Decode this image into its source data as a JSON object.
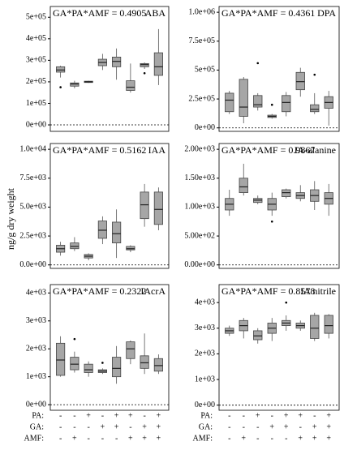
{
  "y_label": "ng/g dry weight",
  "factors": [
    {
      "name": "PA:",
      "levels": [
        "-",
        "-",
        "+",
        "-",
        "+",
        "+",
        "-",
        "+"
      ]
    },
    {
      "name": "GA:",
      "levels": [
        "-",
        "-",
        "-",
        "+",
        "+",
        "-",
        "+",
        "+"
      ]
    },
    {
      "name": "AMF:",
      "levels": [
        "-",
        "+",
        "-",
        "-",
        "-",
        "+",
        "+",
        "+"
      ]
    }
  ],
  "chart_data": [
    {
      "type": "box",
      "title": "ABA",
      "annotation": "GA*PA*AMF = 0.4905",
      "ylim": [
        -30000,
        550000
      ],
      "reference_line": 0,
      "color": "#a6a6a6",
      "yticks": [
        {
          "value": 0,
          "label": "0e+00"
        },
        {
          "value": 100000,
          "label": "1e+05"
        },
        {
          "value": 200000,
          "label": "2e+05"
        },
        {
          "value": 300000,
          "label": "3e+05"
        },
        {
          "value": 400000,
          "label": "4e+05"
        },
        {
          "value": 500000,
          "label": "5e+05"
        }
      ],
      "boxes": [
        {
          "whislo": 220000,
          "q1": 245000,
          "med": 255000,
          "q3": 270000,
          "whishi": 275000,
          "fliers": [
            175000
          ]
        },
        {
          "whislo": 170000,
          "q1": 180000,
          "med": 190000,
          "q3": 195000,
          "whishi": 205000,
          "fliers": []
        },
        {
          "whislo": 195000,
          "q1": 197000,
          "med": 200000,
          "q3": 203000,
          "whishi": 205000,
          "fliers": []
        },
        {
          "whislo": 255000,
          "q1": 275000,
          "med": 290000,
          "q3": 305000,
          "whishi": 330000,
          "fliers": []
        },
        {
          "whislo": 210000,
          "q1": 270000,
          "med": 295000,
          "q3": 315000,
          "whishi": 355000,
          "fliers": []
        },
        {
          "whislo": 150000,
          "q1": 160000,
          "med": 175000,
          "q3": 205000,
          "whishi": 285000,
          "fliers": []
        },
        {
          "whislo": 260000,
          "q1": 270000,
          "med": 280000,
          "q3": 285000,
          "whishi": 290000,
          "fliers": [
            240000
          ]
        },
        {
          "whislo": 185000,
          "q1": 230000,
          "med": 270000,
          "q3": 335000,
          "whishi": 445000,
          "fliers": []
        }
      ]
    },
    {
      "type": "box",
      "title": "DPA",
      "annotation": "GA*PA*AMF = 0.4361",
      "ylim": [
        -30000,
        1050000
      ],
      "reference_line": 0,
      "color": "#a6a6a6",
      "yticks": [
        {
          "value": 0,
          "label": "0e+00"
        },
        {
          "value": 250000,
          "label": "2.5e+05"
        },
        {
          "value": 500000,
          "label": "5e+05"
        },
        {
          "value": 750000,
          "label": "7.5e+05"
        },
        {
          "value": 1000000,
          "label": "1.0e+06"
        }
      ],
      "boxes": [
        {
          "whislo": 120000,
          "q1": 140000,
          "med": 240000,
          "q3": 300000,
          "whishi": 320000,
          "fliers": []
        },
        {
          "whislo": 40000,
          "q1": 100000,
          "med": 180000,
          "q3": 420000,
          "whishi": 440000,
          "fliers": []
        },
        {
          "whislo": 150000,
          "q1": 180000,
          "med": 200000,
          "q3": 280000,
          "whishi": 300000,
          "fliers": [
            560000
          ]
        },
        {
          "whislo": 80000,
          "q1": 90000,
          "med": 100000,
          "q3": 110000,
          "whishi": 120000,
          "fliers": [
            200000
          ]
        },
        {
          "whislo": 100000,
          "q1": 140000,
          "med": 220000,
          "q3": 280000,
          "whishi": 310000,
          "fliers": []
        },
        {
          "whislo": 270000,
          "q1": 330000,
          "med": 400000,
          "q3": 480000,
          "whishi": 520000,
          "fliers": []
        },
        {
          "whislo": 120000,
          "q1": 140000,
          "med": 160000,
          "q3": 200000,
          "whishi": 300000,
          "fliers": [
            460000
          ]
        },
        {
          "whislo": 20000,
          "q1": 170000,
          "med": 220000,
          "q3": 270000,
          "whishi": 320000,
          "fliers": []
        }
      ]
    },
    {
      "type": "box",
      "title": "IAA",
      "annotation": "GA*PA*AMF = 0.5162",
      "ylim": [
        -300,
        10500
      ],
      "reference_line": 0,
      "color": "#a6a6a6",
      "yticks": [
        {
          "value": 0,
          "label": "0.0e+00"
        },
        {
          "value": 2500,
          "label": "2.5e+03"
        },
        {
          "value": 5000,
          "label": "5.0e+03"
        },
        {
          "value": 7500,
          "label": "7.5e+03"
        },
        {
          "value": 10000,
          "label": "1.0e+04"
        }
      ],
      "boxes": [
        {
          "whislo": 800,
          "q1": 1100,
          "med": 1400,
          "q3": 1700,
          "whishi": 2000,
          "fliers": []
        },
        {
          "whislo": 1200,
          "q1": 1400,
          "med": 1600,
          "q3": 1900,
          "whishi": 2400,
          "fliers": []
        },
        {
          "whislo": 400,
          "q1": 600,
          "med": 750,
          "q3": 900,
          "whishi": 1000,
          "fliers": []
        },
        {
          "whislo": 1800,
          "q1": 2300,
          "med": 3000,
          "q3": 3800,
          "whishi": 4200,
          "fliers": []
        },
        {
          "whislo": 600,
          "q1": 1900,
          "med": 2700,
          "q3": 3700,
          "whishi": 4800,
          "fliers": []
        },
        {
          "whislo": 1100,
          "q1": 1300,
          "med": 1400,
          "q3": 1600,
          "whishi": 1700,
          "fliers": []
        },
        {
          "whislo": 3300,
          "q1": 4000,
          "med": 5200,
          "q3": 6300,
          "whishi": 7000,
          "fliers": []
        },
        {
          "whislo": 3000,
          "q1": 3500,
          "med": 4800,
          "q3": 6300,
          "whishi": 6700,
          "fliers": []
        }
      ]
    },
    {
      "type": "box",
      "title": "IA-alanine",
      "annotation": "GA*PA*AMF = 0.9867",
      "ylim": [
        -60,
        2100
      ],
      "reference_line": 0,
      "color": "#a6a6a6",
      "yticks": [
        {
          "value": 0,
          "label": "0.00e+00"
        },
        {
          "value": 500,
          "label": "5.00e+02"
        },
        {
          "value": 1000,
          "label": "1.00e+03"
        },
        {
          "value": 1500,
          "label": "1.50e+03"
        },
        {
          "value": 2000,
          "label": "2.00e+03"
        }
      ],
      "boxes": [
        {
          "whislo": 850,
          "q1": 950,
          "med": 1050,
          "q3": 1150,
          "whishi": 1300,
          "fliers": []
        },
        {
          "whislo": 1200,
          "q1": 1250,
          "med": 1350,
          "q3": 1500,
          "whishi": 1750,
          "fliers": []
        },
        {
          "whislo": 1050,
          "q1": 1080,
          "med": 1120,
          "q3": 1150,
          "whishi": 1200,
          "fliers": []
        },
        {
          "whislo": 850,
          "q1": 950,
          "med": 1050,
          "q3": 1150,
          "whishi": 1250,
          "fliers": [
            750
          ]
        },
        {
          "whislo": 1150,
          "q1": 1180,
          "med": 1250,
          "q3": 1300,
          "whishi": 1320,
          "fliers": []
        },
        {
          "whislo": 1100,
          "q1": 1150,
          "med": 1200,
          "q3": 1250,
          "whishi": 1380,
          "fliers": []
        },
        {
          "whislo": 950,
          "q1": 1100,
          "med": 1200,
          "q3": 1300,
          "whishi": 1450,
          "fliers": []
        },
        {
          "whislo": 850,
          "q1": 1050,
          "med": 1150,
          "q3": 1250,
          "whishi": 1400,
          "fliers": []
        }
      ]
    },
    {
      "type": "box",
      "title": "IAcrA",
      "annotation": "GA*PA*AMF = 0.2322",
      "ylim": [
        -200,
        4300
      ],
      "reference_line": 0,
      "color": "#a6a6a6",
      "yticks": [
        {
          "value": 0,
          "label": "0e+00"
        },
        {
          "value": 1000,
          "label": "1e+03"
        },
        {
          "value": 2000,
          "label": "2e+03"
        },
        {
          "value": 3000,
          "label": "3e+03"
        },
        {
          "value": 4000,
          "label": "4e+03"
        }
      ],
      "boxes": [
        {
          "whislo": 1000,
          "q1": 1050,
          "med": 1600,
          "q3": 2200,
          "whishi": 2450,
          "fliers": []
        },
        {
          "whislo": 1150,
          "q1": 1250,
          "med": 1450,
          "q3": 1700,
          "whishi": 1900,
          "fliers": [
            2350
          ]
        },
        {
          "whislo": 1000,
          "q1": 1150,
          "med": 1250,
          "q3": 1450,
          "whishi": 1550,
          "fliers": []
        },
        {
          "whislo": 1100,
          "q1": 1150,
          "med": 1200,
          "q3": 1250,
          "whishi": 1300,
          "fliers": [
            1500
          ]
        },
        {
          "whislo": 750,
          "q1": 1000,
          "med": 1300,
          "q3": 1700,
          "whishi": 2100,
          "fliers": []
        },
        {
          "whislo": 1450,
          "q1": 1650,
          "med": 2000,
          "q3": 2250,
          "whishi": 2300,
          "fliers": []
        },
        {
          "whislo": 1100,
          "q1": 1300,
          "med": 1500,
          "q3": 1750,
          "whishi": 2550,
          "fliers": []
        },
        {
          "whislo": 1100,
          "q1": 1200,
          "med": 1400,
          "q3": 1650,
          "whishi": 1800,
          "fliers": []
        }
      ]
    },
    {
      "type": "box",
      "title": "IA nitrile",
      "annotation": "GA*PA*AMF = 0.8578",
      "ylim": [
        -200,
        4700
      ],
      "reference_line": 0,
      "color": "#a6a6a6",
      "yticks": [
        {
          "value": 0,
          "label": "0e+00"
        },
        {
          "value": 1000,
          "label": "1e+03"
        },
        {
          "value": 2000,
          "label": "2e+03"
        },
        {
          "value": 3000,
          "label": "3e+03"
        },
        {
          "value": 4000,
          "label": "4e+03"
        }
      ],
      "boxes": [
        {
          "whislo": 2700,
          "q1": 2800,
          "med": 2900,
          "q3": 3000,
          "whishi": 3100,
          "fliers": []
        },
        {
          "whislo": 2600,
          "q1": 2900,
          "med": 3100,
          "q3": 3300,
          "whishi": 3400,
          "fliers": []
        },
        {
          "whislo": 2400,
          "q1": 2550,
          "med": 2700,
          "q3": 2900,
          "whishi": 3000,
          "fliers": []
        },
        {
          "whislo": 2500,
          "q1": 2800,
          "med": 3000,
          "q3": 3200,
          "whishi": 3400,
          "fliers": []
        },
        {
          "whislo": 2900,
          "q1": 3100,
          "med": 3200,
          "q3": 3300,
          "whishi": 3500,
          "fliers": [
            4000
          ]
        },
        {
          "whislo": 2900,
          "q1": 3000,
          "med": 3100,
          "q3": 3200,
          "whishi": 3300,
          "fliers": []
        },
        {
          "whislo": 2500,
          "q1": 2600,
          "med": 3000,
          "q3": 3500,
          "whishi": 3600,
          "fliers": []
        },
        {
          "whislo": 2600,
          "q1": 2800,
          "med": 3100,
          "q3": 3500,
          "whishi": 3550,
          "fliers": []
        }
      ]
    }
  ]
}
